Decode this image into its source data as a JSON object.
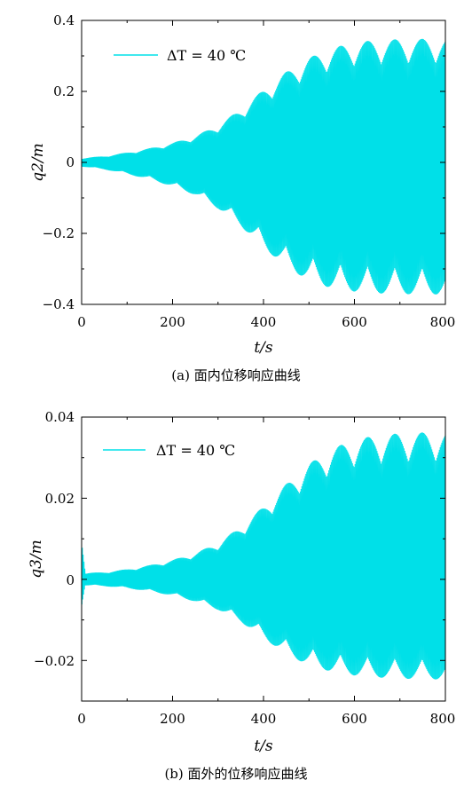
{
  "chart_data": [
    {
      "type": "line",
      "panel_id": "a",
      "caption": "(a) 面内位移响应曲线",
      "xlabel": "t/s",
      "ylabel": "q2/m",
      "xlim": [
        0,
        800
      ],
      "ylim": [
        -0.4,
        0.4
      ],
      "x_ticks": [
        "0",
        "200",
        "400",
        "600",
        "800"
      ],
      "y_ticks": [
        "0.4",
        "0.2",
        "0",
        "−0.2",
        "−0.4"
      ],
      "x_tick_values": [
        0,
        200,
        400,
        600,
        800
      ],
      "y_tick_values": [
        0.4,
        0.2,
        0,
        -0.2,
        -0.4
      ],
      "legend": {
        "label": "ΔT = 40 ℃",
        "position": "top-left"
      },
      "grid": false,
      "color": "#00e0e8",
      "series": [
        {
          "name": "ΔT = 40 ℃",
          "style": "oscillation-envelope",
          "t": [
            0,
            50,
            100,
            150,
            200,
            250,
            300,
            350,
            400,
            450,
            500,
            550,
            600,
            650,
            700,
            750,
            800
          ],
          "upper": [
            0.012,
            0.018,
            0.028,
            0.04,
            0.055,
            0.075,
            0.105,
            0.15,
            0.205,
            0.255,
            0.295,
            0.322,
            0.338,
            0.345,
            0.347,
            0.348,
            0.348
          ],
          "lower": [
            -0.012,
            -0.02,
            -0.033,
            -0.048,
            -0.068,
            -0.092,
            -0.13,
            -0.18,
            -0.24,
            -0.295,
            -0.333,
            -0.355,
            -0.364,
            -0.369,
            -0.371,
            -0.372,
            -0.372
          ]
        }
      ]
    },
    {
      "type": "line",
      "panel_id": "b",
      "caption": "(b) 面外的位移响应曲线",
      "xlabel": "t/s",
      "ylabel": "q3/m",
      "xlim": [
        0,
        800
      ],
      "ylim": [
        -0.03,
        0.04
      ],
      "x_ticks": [
        "0",
        "200",
        "400",
        "600",
        "800"
      ],
      "y_ticks": [
        "0.04",
        "0.02",
        "0",
        "−0.02"
      ],
      "x_tick_values": [
        0,
        200,
        400,
        600,
        800
      ],
      "y_tick_values": [
        0.04,
        0.02,
        0,
        -0.02
      ],
      "legend": {
        "label": "ΔT = 40 ℃",
        "position": "top-left"
      },
      "grid": false,
      "color": "#00e0e8",
      "series": [
        {
          "name": "ΔT = 40 ℃",
          "style": "oscillation-envelope",
          "t": [
            0,
            50,
            100,
            150,
            200,
            250,
            300,
            350,
            400,
            450,
            500,
            550,
            600,
            650,
            700,
            750,
            800
          ],
          "upper": [
            0.0015,
            0.0018,
            0.0025,
            0.0035,
            0.0048,
            0.0065,
            0.009,
            0.013,
            0.018,
            0.0235,
            0.0285,
            0.0322,
            0.0345,
            0.0355,
            0.036,
            0.0362,
            0.0363
          ],
          "lower": [
            -0.0015,
            -0.0017,
            -0.0022,
            -0.003,
            -0.004,
            -0.0055,
            -0.0075,
            -0.0105,
            -0.0145,
            -0.0185,
            -0.0212,
            -0.0228,
            -0.0237,
            -0.0242,
            -0.0245,
            -0.0246,
            -0.0247
          ]
        }
      ],
      "initial_transient": {
        "t": [
          0,
          10
        ],
        "max": 0.0095,
        "min": -0.0068
      }
    }
  ]
}
